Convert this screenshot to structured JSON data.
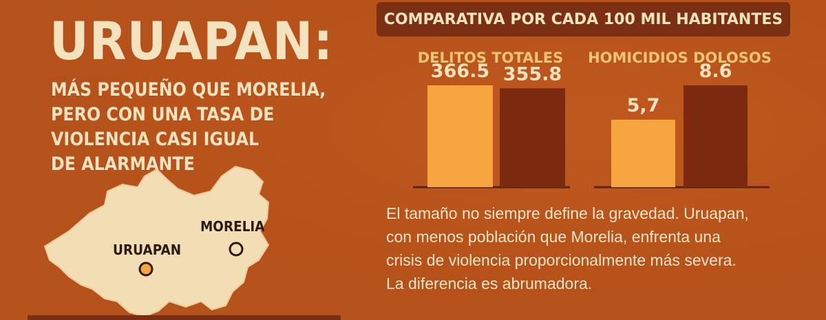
{
  "title": "URUAPAN:",
  "subtitle_lines": [
    "MÁS PEQUEÑO QUE MORELIA,",
    "PERO CON UNA TASA DE",
    "VIOLENCIA CASI IGUAL",
    "DE ALARMANTE"
  ],
  "map": {
    "cities": [
      "MORELIA",
      "URUAPAN"
    ]
  },
  "colors": {
    "background": "#B5511A",
    "uruapan_bar": "#F5A43F",
    "morelia_bar": "#7B2A10",
    "cream": "#F4E3BE",
    "label_gold": "#F5C27A"
  },
  "chart_data": {
    "type": "bar",
    "title": "COMPARATIVA POR CADA 100 MIL HABITANTES",
    "groups": [
      {
        "label": "DELITOS TOTALES",
        "values": [
          366.5,
          355.8
        ],
        "value_labels": [
          "366.5",
          "355.8"
        ]
      },
      {
        "label": "HOMICIDIOS DOLOSOS",
        "values": [
          5.7,
          8.6
        ],
        "value_labels": [
          "5,7",
          "8.6"
        ]
      }
    ],
    "series": [
      {
        "values": [
          366.5,
          5.7
        ],
        "color": "#F5A43F"
      },
      {
        "values": [
          355.8,
          8.6
        ],
        "color": "#7B2A10"
      }
    ],
    "independent_scales_per_group": true,
    "grid": false,
    "legend": false
  },
  "body_lines": [
    "El tamaño no siempre define la gravedad. Uruapan,",
    "con menos población que Morelia, enfrenta una",
    "crisis de violencia proporcionalmente más severa.",
    "La diferencia es abrumadora."
  ]
}
